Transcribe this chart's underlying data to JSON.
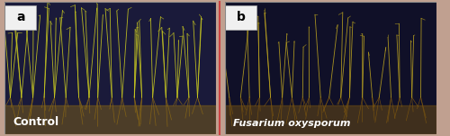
{
  "fig_width": 5.0,
  "fig_height": 1.51,
  "dpi": 100,
  "panel_a": {
    "label": "a",
    "caption": "Control",
    "bg_color": "#1a1a3a",
    "plant_color_main": "#c8c820",
    "plant_color_root": "#8B6914",
    "label_bg": "#f0f0f0",
    "label_text_color": "#000000",
    "caption_color": "#ffffff",
    "caption_fontsize": 9,
    "label_fontsize": 10
  },
  "panel_b": {
    "label": "b",
    "caption": "Fusarium oxysporum",
    "bg_color": "#101028",
    "plant_color_main": "#b8a020",
    "plant_color_root": "#7a5510",
    "label_bg": "#f0f0f0",
    "label_text_color": "#000000",
    "caption_color": "#ffffff",
    "caption_fontsize": 8,
    "label_fontsize": 10
  },
  "divider_color": "#cc4444",
  "outer_border_color": "#888888",
  "gap_color": "#c0a090"
}
